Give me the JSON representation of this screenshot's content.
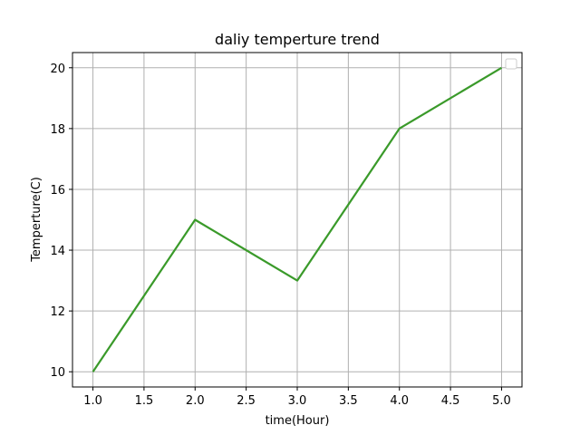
{
  "chart_data": {
    "type": "line",
    "title": "daliy temperture trend",
    "xlabel": "time(Hour)",
    "ylabel": "Temperture(C)",
    "x": [
      1.0,
      2.0,
      3.0,
      4.0,
      5.0
    ],
    "series": [
      {
        "values": [
          10,
          15,
          13,
          18,
          20
        ],
        "color": "#3a9a2a"
      }
    ],
    "xlim": [
      0.8,
      5.2
    ],
    "ylim": [
      9.5,
      20.5
    ],
    "xticks": [
      "1.0",
      "1.5",
      "2.0",
      "2.5",
      "3.0",
      "3.5",
      "4.0",
      "4.5",
      "5.0"
    ],
    "yticks": [
      "10",
      "12",
      "14",
      "16",
      "18",
      "20"
    ],
    "grid": true,
    "legend_position": "top-right",
    "colors": {
      "grid": "#b0b0b0",
      "axis": "#000000"
    }
  }
}
